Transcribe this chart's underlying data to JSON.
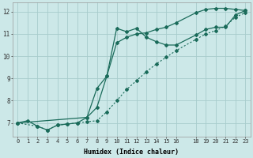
{
  "xlabel": "Humidex (Indice chaleur)",
  "xlim": [
    -0.5,
    23.5
  ],
  "ylim": [
    6.4,
    12.4
  ],
  "xticks": [
    0,
    1,
    2,
    3,
    4,
    5,
    6,
    7,
    8,
    9,
    10,
    11,
    12,
    13,
    14,
    15,
    16,
    18,
    19,
    20,
    21,
    22,
    23
  ],
  "yticks": [
    7,
    8,
    9,
    10,
    11,
    12
  ],
  "bg_color": "#cce8e8",
  "grid_color": "#a8cccc",
  "line_color": "#1a6b5a",
  "series_dotted_x": [
    0,
    2,
    3,
    4,
    5,
    6,
    7,
    8,
    9,
    10,
    11,
    12,
    13,
    14,
    15,
    16,
    18,
    19,
    20,
    21,
    22,
    23
  ],
  "series_dotted_y": [
    7.0,
    6.85,
    6.68,
    6.9,
    6.95,
    7.0,
    7.05,
    7.1,
    7.5,
    8.0,
    8.5,
    8.9,
    9.3,
    9.65,
    9.95,
    10.25,
    10.75,
    11.0,
    11.15,
    11.35,
    11.75,
    11.95
  ],
  "series_solid1_x": [
    0,
    1,
    2,
    3,
    4,
    5,
    6,
    7,
    8,
    9,
    10,
    11,
    12,
    13,
    14,
    15,
    16,
    18,
    19,
    20,
    21,
    22,
    23
  ],
  "series_solid1_y": [
    7.0,
    7.1,
    6.85,
    6.68,
    6.9,
    6.95,
    7.0,
    7.25,
    7.7,
    9.1,
    11.25,
    11.1,
    11.25,
    10.85,
    10.65,
    10.5,
    10.5,
    10.95,
    11.2,
    11.3,
    11.3,
    11.85,
    12.05
  ],
  "series_solid2_x": [
    0,
    7,
    8,
    9,
    10,
    11,
    12,
    13,
    14,
    15,
    16,
    18,
    19,
    20,
    21,
    22,
    23
  ],
  "series_solid2_y": [
    7.0,
    7.25,
    8.55,
    9.1,
    10.6,
    10.85,
    11.0,
    11.05,
    11.2,
    11.3,
    11.5,
    11.95,
    12.1,
    12.15,
    12.15,
    12.1,
    12.05
  ]
}
